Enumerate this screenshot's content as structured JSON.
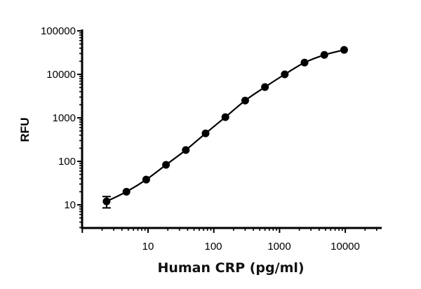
{
  "chart_data": {
    "type": "scatter",
    "title": "",
    "xlabel": "Human CRP (pg/ml)",
    "ylabel": "RFU",
    "xscale": "log",
    "yscale": "log",
    "xlim": [
      1,
      30000
    ],
    "ylim": [
      3,
      100000
    ],
    "x_ticks": [
      "10",
      "100",
      "1000",
      "10000"
    ],
    "y_ticks": [
      "10",
      "100",
      "1000",
      "10000",
      "100000"
    ],
    "grid": false,
    "legend": null,
    "fit_curve": "4PL-style sigmoidal fit (solid line)",
    "series": [
      {
        "name": "Human CRP standard curve",
        "marker": "filled-circle",
        "color": "#000000",
        "x": [
          2.34,
          4.69,
          9.38,
          18.75,
          37.5,
          75,
          150,
          300,
          600,
          1200,
          2400,
          4800,
          9600
        ],
        "y": [
          12,
          20,
          38,
          83,
          182,
          440,
          1040,
          2500,
          5100,
          10000,
          18600,
          28000,
          36500
        ],
        "error": [
          3.5,
          0,
          0,
          0,
          0,
          0,
          0,
          0,
          0,
          0,
          0,
          0,
          0
        ]
      }
    ]
  },
  "labels": {
    "xlabel": "Human CRP (pg/ml)",
    "ylabel": "RFU",
    "xticks": [
      "10",
      "100",
      "1000",
      "10000"
    ],
    "yticks": [
      "100000",
      "10000",
      "1000",
      "100",
      "10"
    ]
  },
  "colors": {
    "ink": "#000000",
    "background": "#ffffff"
  }
}
